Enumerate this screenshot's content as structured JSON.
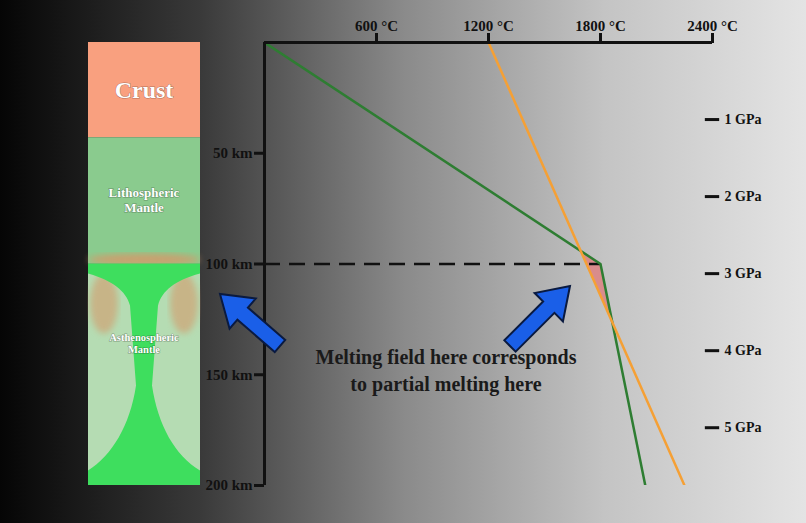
{
  "chart_data": {
    "type": "line",
    "xlim": [
      0,
      2400
    ],
    "xticks": [
      {
        "value": 600,
        "label": "600 °C"
      },
      {
        "value": 1200,
        "label": "1200 °C"
      },
      {
        "value": 1800,
        "label": "1800 °C"
      },
      {
        "value": 2400,
        "label": "2400 °C"
      }
    ],
    "ylim": [
      0,
      200
    ],
    "yticks": [
      {
        "value": 50,
        "label": "50 km"
      },
      {
        "value": 100,
        "label": "100 km"
      },
      {
        "value": 150,
        "label": "150 km"
      },
      {
        "value": 200,
        "label": "200 km"
      }
    ],
    "y2lim": [
      0,
      5.75
    ],
    "y2ticks": [
      {
        "value": 1,
        "label": "1 GPa"
      },
      {
        "value": 2,
        "label": "2 GPa"
      },
      {
        "value": 3,
        "label": "3 GPa"
      },
      {
        "value": 4,
        "label": "4 GPa"
      },
      {
        "value": 5,
        "label": "5 GPa"
      }
    ],
    "series": [
      {
        "color": "#2e7d32",
        "x": [
          0,
          1800,
          2040
        ],
        "values": [
          0,
          100,
          200
        ]
      },
      {
        "color": "#f5a035",
        "x": [
          1200,
          2250
        ],
        "values": [
          0,
          200
        ]
      }
    ],
    "dashed_line": {
      "y": 100,
      "x": [
        0,
        1800
      ],
      "line_style": "dashed"
    },
    "melt_field": {
      "x": [
        1693,
        1800,
        1863,
        1724
      ],
      "y": [
        94,
        100,
        126,
        100
      ],
      "color": "#e07a7a"
    },
    "annotation": [
      "Melting field here corresponds",
      "to partial melting here"
    ],
    "layers": [
      {
        "label": [
          "Crust"
        ],
        "top": 0,
        "bottom": 43,
        "color": "#f9a07f"
      },
      {
        "label": [
          "Lithospheric",
          "Mantle"
        ],
        "top": 43,
        "bottom": 100,
        "color": "#8acb8e"
      },
      {
        "label": [
          "Asthenospheric",
          "Mantle"
        ],
        "top": 100,
        "bottom": 200,
        "color": "#b5dcb3"
      }
    ]
  }
}
